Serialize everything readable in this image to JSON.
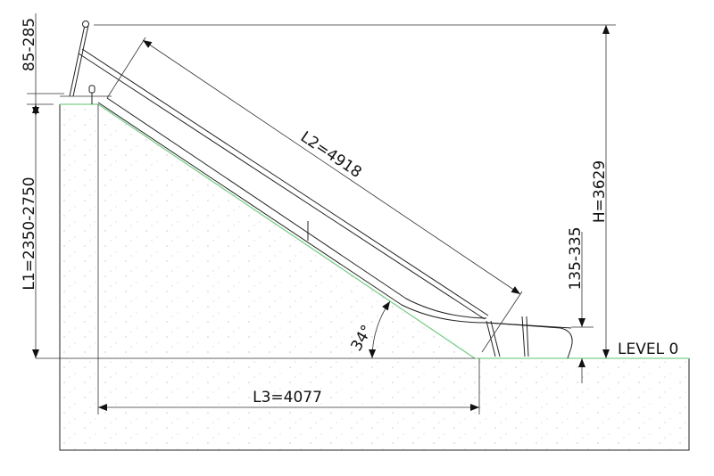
{
  "drawing": {
    "dimensions": {
      "overhang": "85-285",
      "l1": "L1=2350-2750",
      "l2": "L2=4918",
      "l3": "L3=4077",
      "h": "H=3629",
      "exit_height": "135-335",
      "angle": "34°"
    },
    "level_label": "LEVEL 0",
    "colors": {
      "ground_line": "#7ccf8a",
      "lines": "#222222"
    }
  }
}
